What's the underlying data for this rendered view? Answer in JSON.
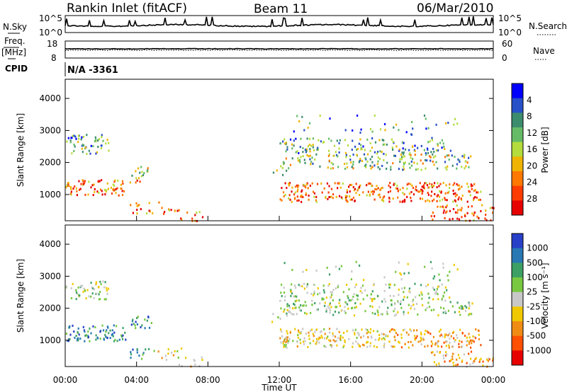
{
  "header": {
    "station": "Rankin Inlet (fitACF)",
    "beam": "Beam 11",
    "date": "06/Mar/2010"
  },
  "left_labels": {
    "nsky": "N.Sky",
    "freq": "Freq.",
    "freq_unit": "[MHz]",
    "cpid": "CPID",
    "nsky_top": "10^5",
    "nsky_bottom": "10^0",
    "freq_top": "18",
    "freq_bottom": "8"
  },
  "right_labels": {
    "nsearch": "N.Search",
    "nave": "Nave",
    "nsearch_top": "10^5",
    "nsearch_bottom": "10^0",
    "nave_top": "60",
    "nave_bottom": "0"
  },
  "cpid_text": "N/A -3361",
  "chart_data": [
    {
      "type": "heatmap",
      "title": "Power",
      "ylabel": "Slant Range [km]",
      "ylim": [
        180,
        4600
      ],
      "yticks": [
        "1000",
        "2000",
        "3000",
        "4000"
      ],
      "colorbar_label": "Power [dB]",
      "colorbar_ticks": [
        "4",
        "8",
        "12",
        "16",
        "20",
        "24",
        "28"
      ],
      "colorbar_colors": [
        "#0000ff",
        "#2850c8",
        "#3c8c6e",
        "#66bb66",
        "#b4dc3c",
        "#f0b400",
        "#ff7800",
        "#ff3c00",
        "#e60000"
      ]
    },
    {
      "type": "heatmap",
      "title": "Velocity",
      "ylabel": "Slant Range [km]",
      "ylim": [
        180,
        4600
      ],
      "yticks": [
        "1000",
        "2000",
        "3000",
        "4000"
      ],
      "colorbar_label": "Velocity [m s⁻¹]",
      "colorbar_ticks": [
        "1000",
        "500",
        "100",
        "25",
        "-25",
        "-100",
        "-500",
        "-1000"
      ],
      "colorbar_colors": [
        "#2840c8",
        "#2878b4",
        "#3ca064",
        "#78c840",
        "#c8c8c8",
        "#f0c800",
        "#f08c14",
        "#ff5000",
        "#e60000"
      ]
    }
  ],
  "xaxis": {
    "label": "Time UT",
    "ticks": [
      "00:00",
      "04:00",
      "08:00",
      "12:00",
      "16:00",
      "20:00",
      "00:00"
    ]
  }
}
